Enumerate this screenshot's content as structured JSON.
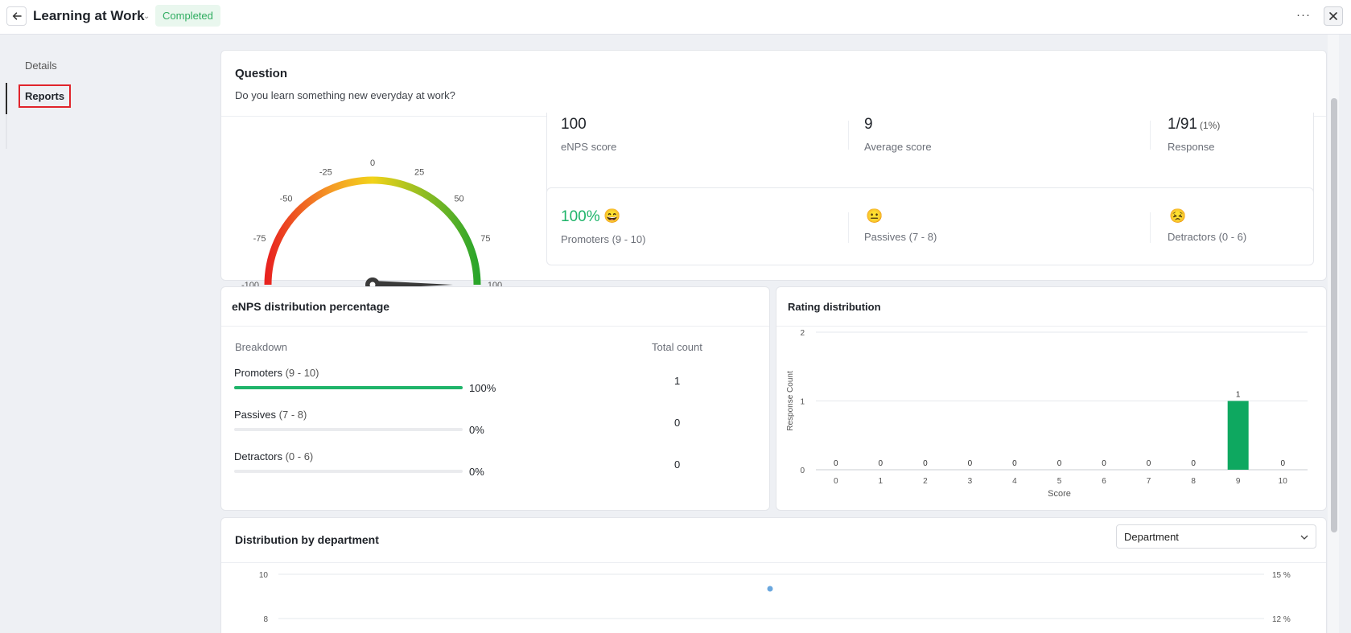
{
  "header": {
    "title": "Learning at Work",
    "status": "Completed"
  },
  "sidebar": {
    "items": [
      {
        "label": "Details"
      },
      {
        "label": "Reports"
      }
    ]
  },
  "question": {
    "heading": "Question",
    "text": "Do you learn something new everyday at work?"
  },
  "gauge": {
    "ticks": [
      "-100",
      "-75",
      "-50",
      "-25",
      "0",
      "25",
      "50",
      "75",
      "100"
    ],
    "value": 100,
    "colors": [
      "#e8231f",
      "#f59a26",
      "#f2d31a",
      "#2aa52b"
    ]
  },
  "stats": {
    "enps_value": "100",
    "enps_label": "eNPS score",
    "avg_value": "9",
    "avg_label": "Average score",
    "response_value": "1/91",
    "response_pct": "(1%)",
    "response_label": "Response"
  },
  "groups": {
    "promoters_pct": "100%",
    "promoters_label": "Promoters (9 - 10)",
    "passives_label": "Passives (7 - 8)",
    "detractors_label": "Detractors (0 - 6)"
  },
  "distribution": {
    "heading": "eNPS distribution percentage",
    "col_breakdown": "Breakdown",
    "col_total": "Total count",
    "rows": [
      {
        "name": "Promoters",
        "range": "(9 - 10)",
        "pct": "100%",
        "fraction": 1.0,
        "count": "1"
      },
      {
        "name": "Passives",
        "range": "(7 - 8)",
        "pct": "0%",
        "fraction": 0.0,
        "count": "0"
      },
      {
        "name": "Detractors",
        "range": "(0 - 6)",
        "pct": "0%",
        "fraction": 0.0,
        "count": "0"
      }
    ]
  },
  "rating": {
    "heading": "Rating distribution",
    "chart_data": {
      "type": "bar",
      "title": "Rating distribution",
      "xlabel": "Score",
      "ylabel": "Response Count",
      "categories": [
        "0",
        "1",
        "2",
        "3",
        "4",
        "5",
        "6",
        "7",
        "8",
        "9",
        "10"
      ],
      "values": [
        0,
        0,
        0,
        0,
        0,
        0,
        0,
        0,
        0,
        1,
        0
      ],
      "ylim": [
        0,
        2
      ],
      "yticks": [
        "0",
        "1",
        "2"
      ],
      "color": "#0ea860"
    }
  },
  "department": {
    "heading": "Distribution by department",
    "select_value": "Department",
    "chart_data": {
      "type": "scatter",
      "left_ticks": [
        "10",
        "8"
      ],
      "right_ticks": [
        "15 %",
        "12 %"
      ],
      "point_color": "#6aa7de"
    }
  }
}
